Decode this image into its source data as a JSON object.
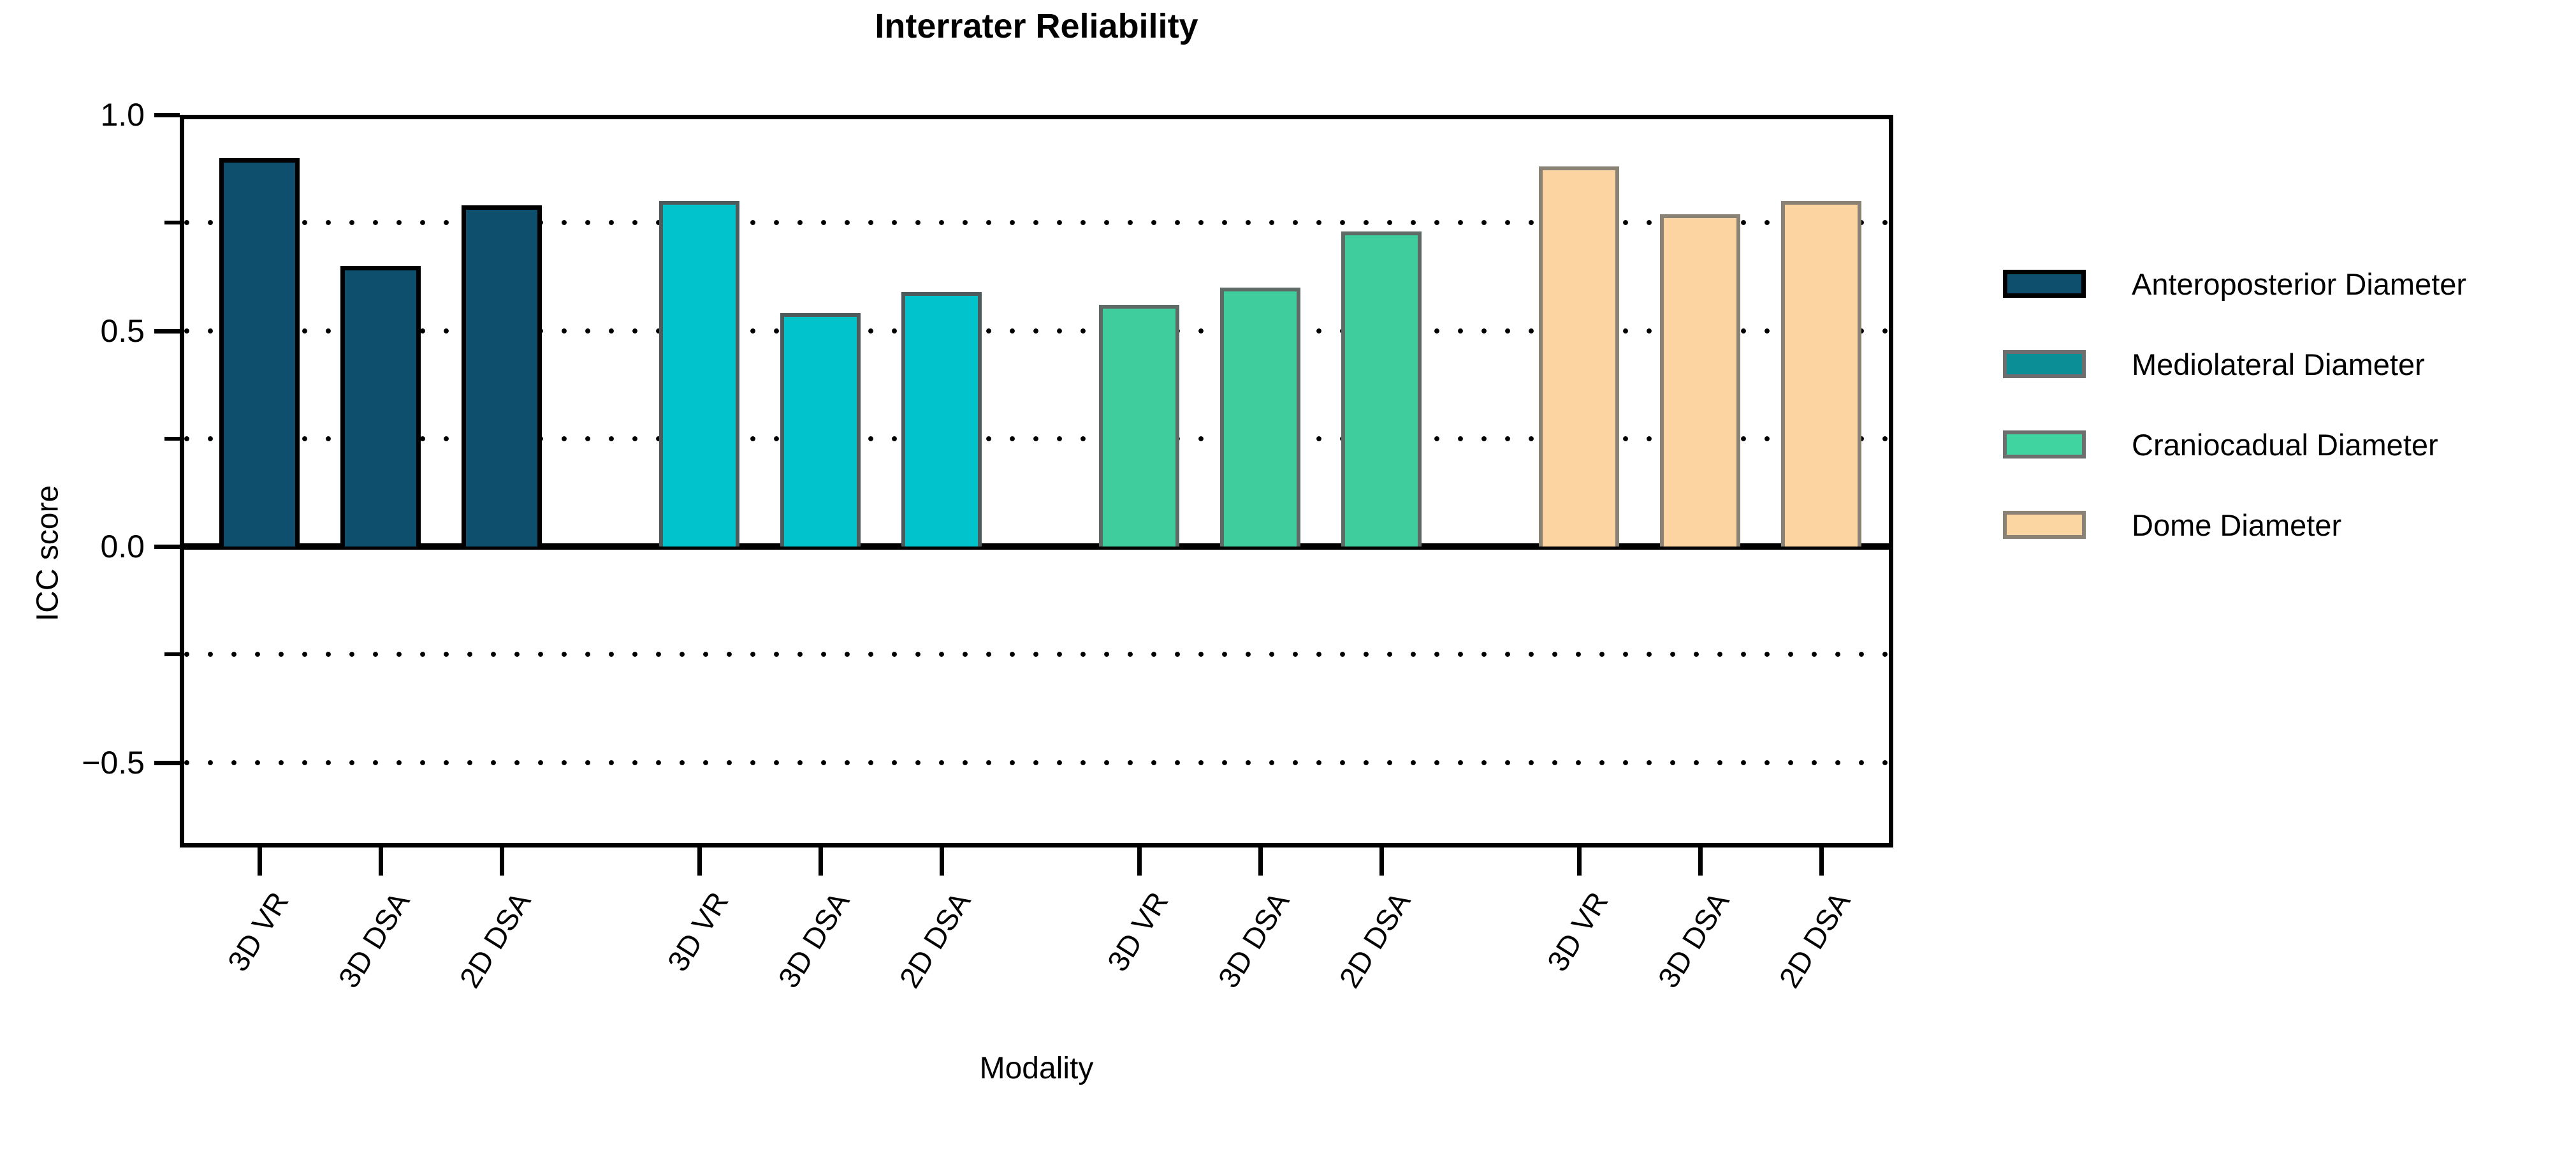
{
  "title": "Interrater Reliability",
  "chart_data": {
    "type": "bar",
    "title": "Interrater Reliability",
    "xlabel": "Modality",
    "ylabel": "ICC score",
    "ylim": [
      -0.7,
      1.0
    ],
    "grid": "horizontal dotted lines every 0.25",
    "legend_position": "right",
    "ytick_values": [
      1.0,
      0.5,
      0.0,
      -0.5
    ],
    "ytick_labels": [
      "1.0",
      "0.5",
      "0.0",
      "−0.5"
    ],
    "yminor_tick_values": [
      0.75,
      0.25,
      -0.25
    ],
    "gridline_values": [
      0.75,
      0.5,
      0.25,
      -0.25,
      -0.5
    ],
    "categories": [
      "3D VR",
      "3D DSA",
      "2D DSA"
    ],
    "series": [
      {
        "name": "Anteroposterior Diameter",
        "color": "#0E4F6E",
        "border": "#000000",
        "legend_color": "#0E4F6E",
        "legend_border": "#000000",
        "values": [
          0.9,
          0.65,
          0.79
        ]
      },
      {
        "name": "Mediolateral Diameter",
        "color": "#00C3CC",
        "border": "#4E5B5D",
        "legend_color": "#0C8E97",
        "legend_border": "#6E6E6E",
        "values": [
          0.8,
          0.54,
          0.59
        ]
      },
      {
        "name": "Craniocadual Diameter",
        "color": "#3FCD9D",
        "border": "#5E6A66",
        "legend_color": "#3FD4A0",
        "legend_border": "#6E6E6E",
        "values": [
          0.56,
          0.6,
          0.73
        ]
      },
      {
        "name": "Dome Diameter",
        "color": "#FBD4A1",
        "border": "#8A8275",
        "legend_color": "#FBD5A2",
        "legend_border": "#8A8275",
        "values": [
          0.88,
          0.77,
          0.8
        ]
      }
    ]
  }
}
